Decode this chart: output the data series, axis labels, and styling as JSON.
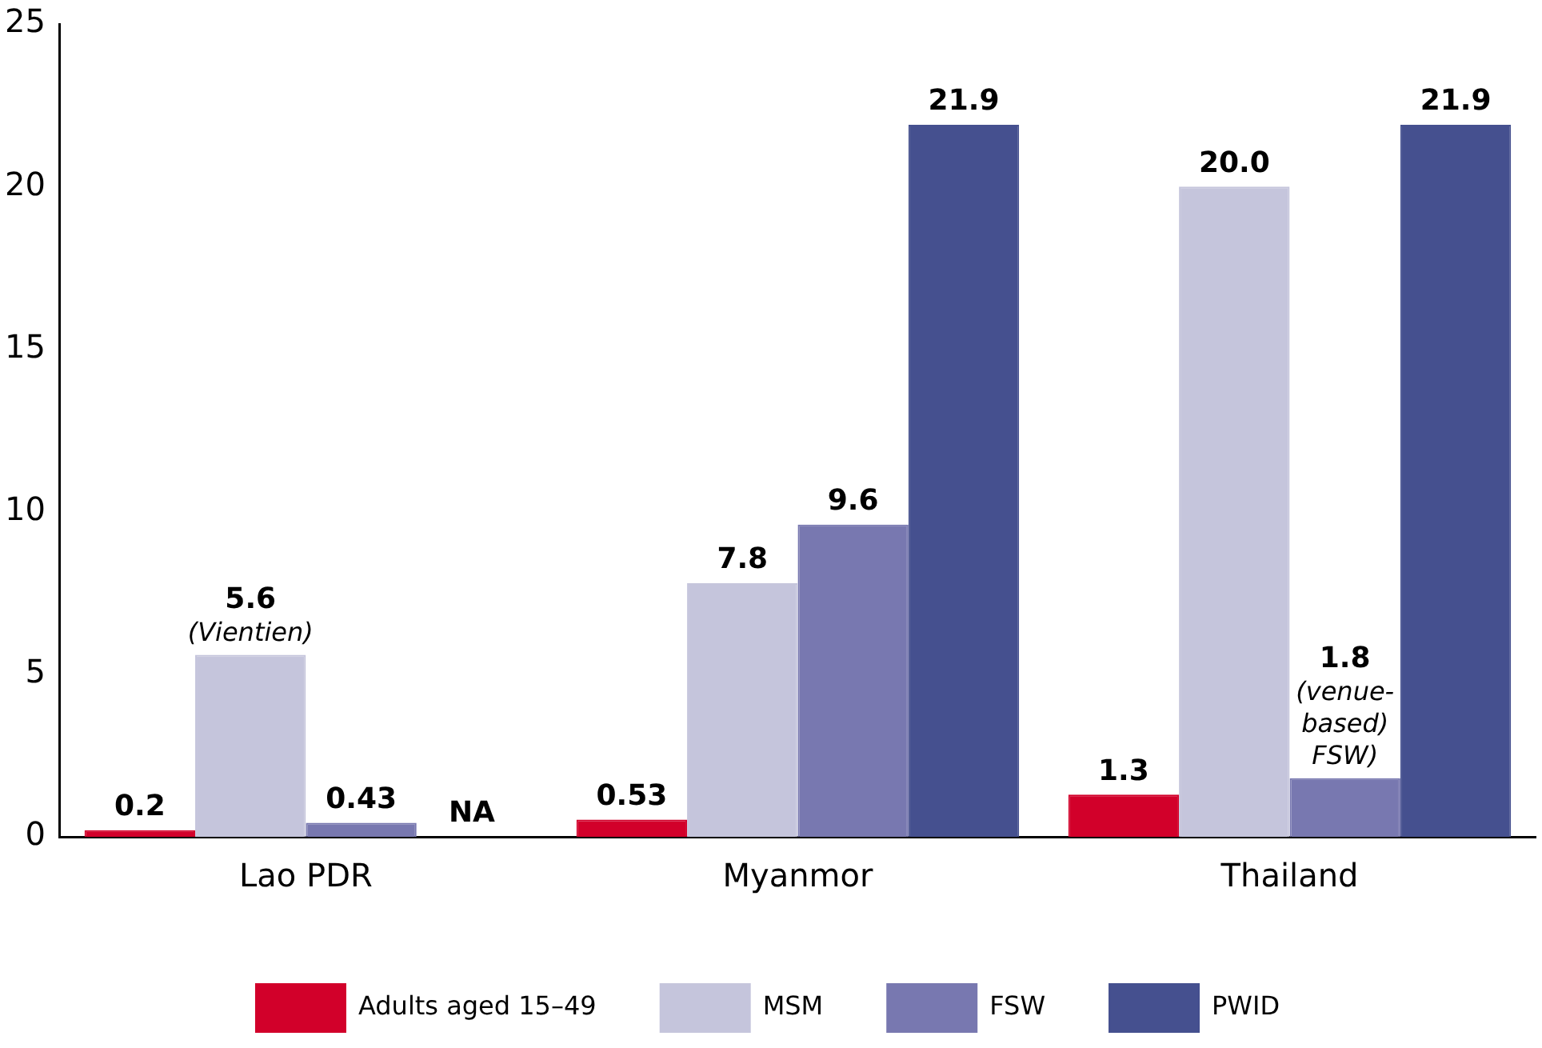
{
  "chart_data": {
    "type": "bar",
    "categories": [
      "Lao PDR",
      "Myanmor",
      "Thailand"
    ],
    "ylim": [
      0,
      25
    ],
    "yticks": [
      0,
      5,
      10,
      15,
      20,
      25
    ],
    "grid": false,
    "legend": "bottom",
    "series": [
      {
        "name": "Adults aged 15–49",
        "color": "#d2002a",
        "values": [
          0.2,
          0.53,
          1.3
        ],
        "value_labels": [
          "0.2",
          "0.53",
          "1.3"
        ]
      },
      {
        "name": "MSM",
        "color": "#c5c5dc",
        "values": [
          5.6,
          7.8,
          20.0
        ],
        "value_labels": [
          "5.6 (Vientien)",
          "7.8",
          "20.0"
        ]
      },
      {
        "name": "FSW",
        "color": "#7878b0",
        "values": [
          0.43,
          9.6,
          1.8
        ],
        "value_labels": [
          "0.43",
          "9.6",
          "1.8 (venue-based) FSW)"
        ]
      },
      {
        "name": "PWID",
        "color": "#45508f",
        "values": [
          null,
          21.9,
          21.9
        ],
        "value_labels": [
          "NA",
          "21.9",
          "21.9"
        ]
      }
    ]
  }
}
